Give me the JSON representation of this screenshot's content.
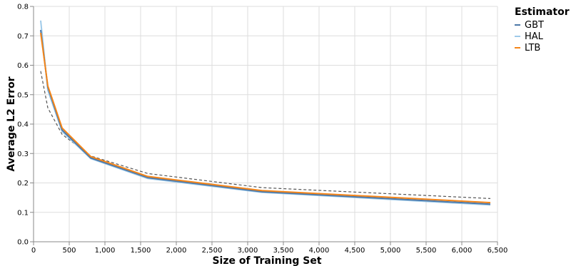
{
  "chart_data": {
    "type": "line",
    "xlabel": "Size of Training Set",
    "ylabel": "Average L2 Error",
    "xlim": [
      0,
      6500
    ],
    "ylim": [
      0,
      0.8
    ],
    "xticks": [
      0,
      500,
      1000,
      1500,
      2000,
      2500,
      3000,
      3500,
      4000,
      4500,
      5000,
      5500,
      6000,
      6500
    ],
    "xtick_labels": [
      "0",
      "500",
      "1,000",
      "1,500",
      "2,000",
      "2,500",
      "3,000",
      "3,500",
      "4,000",
      "4,500",
      "5,000",
      "5,500",
      "6,000",
      "6,500"
    ],
    "yticks": [
      0,
      0.1,
      0.2,
      0.3,
      0.4,
      0.5,
      0.6,
      0.7,
      0.8
    ],
    "ytick_labels": [
      "0.0",
      "0.1",
      "0.2",
      "0.3",
      "0.4",
      "0.5",
      "0.6",
      "0.7",
      "0.8"
    ],
    "grid": true,
    "legend_position": "right",
    "legend_title": "Estimator",
    "x": [
      100,
      200,
      400,
      800,
      1600,
      3200,
      6400
    ],
    "series": [
      {
        "name": "GBT",
        "color": "#4c78a8",
        "values": [
          0.72,
          0.525,
          0.38,
          0.285,
          0.218,
          0.17,
          0.128
        ]
      },
      {
        "name": "HAL",
        "color": "#9ecae9",
        "values": [
          0.752,
          0.515,
          0.375,
          0.283,
          0.215,
          0.168,
          0.125
        ]
      },
      {
        "name": "LTB",
        "color": "#f58518",
        "values": [
          0.71,
          0.53,
          0.387,
          0.29,
          0.222,
          0.174,
          0.133
        ]
      },
      {
        "color": "#555555",
        "dashed": true,
        "values": [
          0.58,
          0.455,
          0.365,
          0.292,
          0.232,
          0.184,
          0.147
        ]
      }
    ]
  }
}
